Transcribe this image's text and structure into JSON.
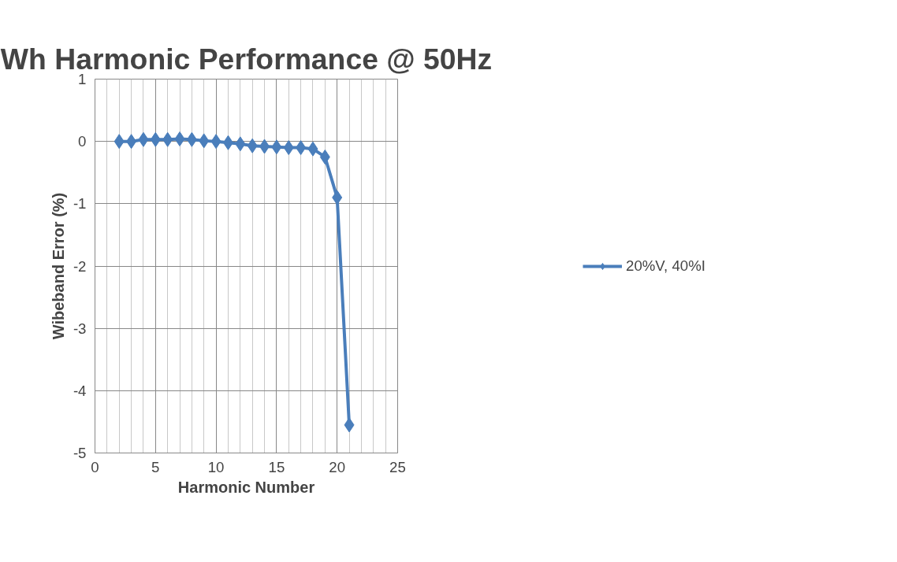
{
  "chart_data": {
    "type": "line",
    "title": "Wh Harmonic Performance @ 50Hz",
    "xlabel": "Harmonic Number",
    "ylabel": "Wibeband Error (%)",
    "x": [
      2,
      3,
      4,
      5,
      6,
      7,
      8,
      9,
      10,
      11,
      12,
      13,
      14,
      15,
      16,
      17,
      18,
      19,
      20,
      21
    ],
    "series": [
      {
        "name": "20%V, 40%I",
        "color": "#4a7ebb",
        "values": [
          0,
          0,
          0.03,
          0.03,
          0.03,
          0.04,
          0.03,
          0.01,
          0,
          -0.02,
          -0.04,
          -0.07,
          -0.08,
          -0.09,
          -0.1,
          -0.1,
          -0.12,
          -0.25,
          -0.9,
          -4.55
        ]
      }
    ],
    "xlim": [
      0,
      25
    ],
    "xticks": [
      0,
      5,
      10,
      15,
      20,
      25
    ],
    "ylim": [
      -5,
      1
    ],
    "yticks": [
      -5,
      -4,
      -3,
      -2,
      -1,
      0,
      1
    ],
    "grid": true,
    "legend": "right",
    "marker": "diamond",
    "line_style": "solid"
  }
}
